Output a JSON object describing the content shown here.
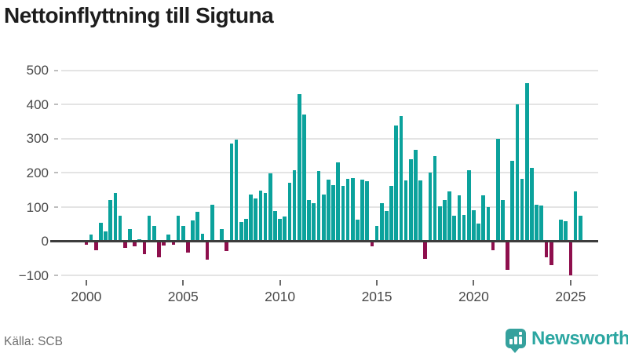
{
  "title": "Nettoinflyttning till Sigtuna",
  "footer": {
    "source_label": "Källa: SCB",
    "brand_name": "Newsworthy"
  },
  "colors": {
    "positive_bar": "#0ba29c",
    "negative_bar": "#8e0f4d",
    "gridline": "#e4e4e4",
    "zero_axis": "#3d3d3d",
    "brand_teal": "#2ba6a1"
  },
  "chart_data": {
    "type": "bar",
    "title": "Nettoinflyttning till Sigtuna",
    "frequency": "quarterly",
    "x_start": "2000 Q1",
    "x_end": "2025 Q3",
    "x_tick_years": [
      2000,
      2005,
      2010,
      2015,
      2020,
      2025
    ],
    "y_ticks": [
      500,
      400,
      300,
      200,
      100,
      0,
      -100
    ],
    "ylim": [
      -130,
      520
    ],
    "grid": "horizontal",
    "legend": "none",
    "values": [
      -7,
      20,
      -23,
      54,
      28,
      120,
      141,
      74,
      -16,
      36,
      -12,
      6,
      -33,
      74,
      46,
      -42,
      -9,
      21,
      -6,
      75,
      46,
      -29,
      61,
      87,
      22,
      -49,
      108,
      2,
      37,
      -25,
      285,
      297,
      56,
      65,
      136,
      126,
      149,
      141,
      198,
      89,
      65,
      73,
      171,
      207,
      430,
      370,
      120,
      111,
      205,
      136,
      181,
      165,
      230,
      163,
      183,
      186,
      63,
      181,
      176,
      -11,
      46,
      112,
      89,
      163,
      338,
      366,
      178,
      239,
      267,
      179,
      -48,
      200,
      250,
      102,
      120,
      147,
      76,
      135,
      77,
      207,
      91,
      53,
      135,
      100,
      -23,
      299,
      120,
      -79,
      235,
      401,
      183,
      463,
      214,
      106,
      104,
      -43,
      -67,
      2,
      63,
      60,
      -95,
      146,
      75
    ]
  }
}
